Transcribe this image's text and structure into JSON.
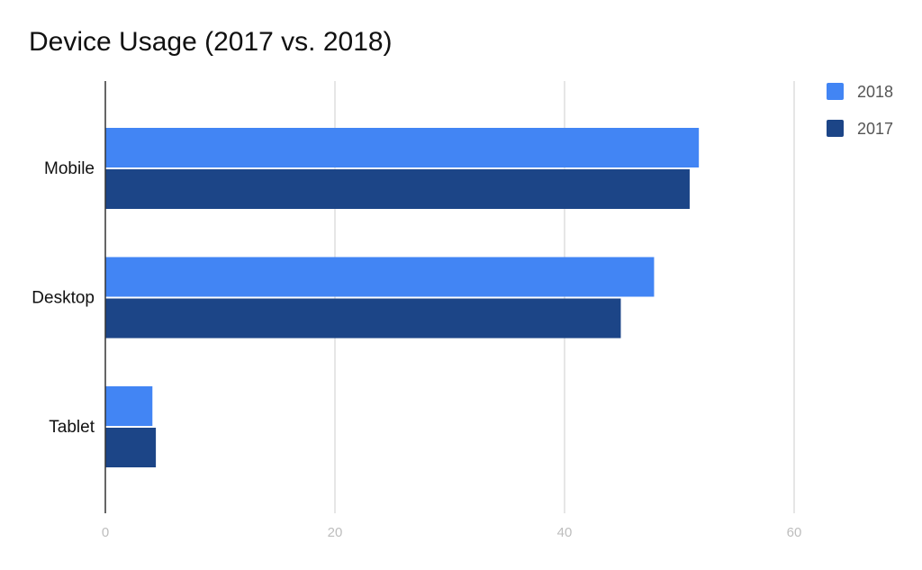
{
  "chart_data": {
    "type": "bar",
    "orientation": "horizontal",
    "title": "Device Usage (2017 vs. 2018)",
    "categories": [
      "Mobile",
      "Desktop",
      "Tablet"
    ],
    "series": [
      {
        "name": "2018",
        "values": [
          51.7,
          47.8,
          4.1
        ],
        "color": "#4285f4"
      },
      {
        "name": "2017",
        "values": [
          50.9,
          44.9,
          4.4
        ],
        "color": "#1c4587"
      }
    ],
    "xlim": [
      0,
      60
    ],
    "xticks": [
      0,
      20,
      40,
      60
    ],
    "xtick_labels": [
      "0",
      "20",
      "40",
      "60"
    ],
    "xlabel": "",
    "ylabel": "",
    "grid": true,
    "legend_position": "top-right"
  }
}
